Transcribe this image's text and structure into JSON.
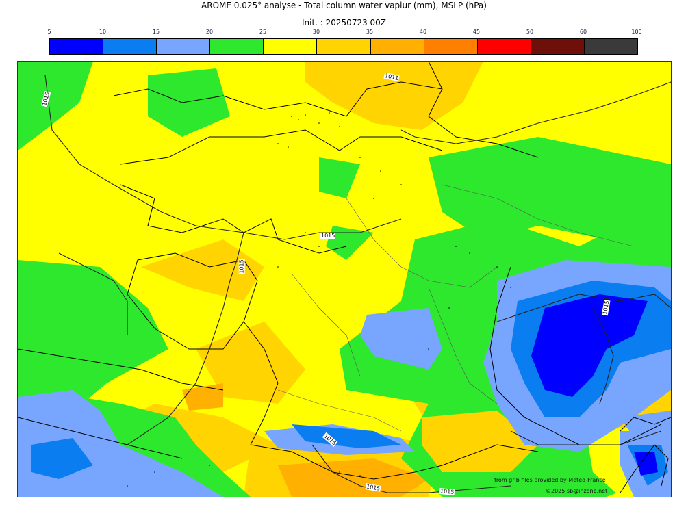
{
  "title": "AROME 0.025° analyse - Total column water vapiur (mm), MSLP (hPa)",
  "init": "Init. : 20250723 00Z",
  "scale": {
    "ticks": [
      "5",
      "10",
      "15",
      "20",
      "25",
      "30",
      "35",
      "40",
      "45",
      "50",
      "60",
      "100"
    ],
    "colors": [
      "#0000ff",
      "#0a7df0",
      "#78a6ff",
      "#2ee82e",
      "#ffff00",
      "#ffd400",
      "#ffb000",
      "#ff8000",
      "#ff0000",
      "#6e0f0a",
      "#3a3a3a"
    ]
  },
  "isobars": {
    "l1011": "1011",
    "l1015a": "1015",
    "l1015b": "1015",
    "l1015c": "1015",
    "l1015d": "1015",
    "l1015e": "1015",
    "l1015f": "1015",
    "l1015g": "1015"
  },
  "credits": {
    "source": "from grib files provided by Meteo-France",
    "copyright": "©2025 sb@inzone.net"
  }
}
